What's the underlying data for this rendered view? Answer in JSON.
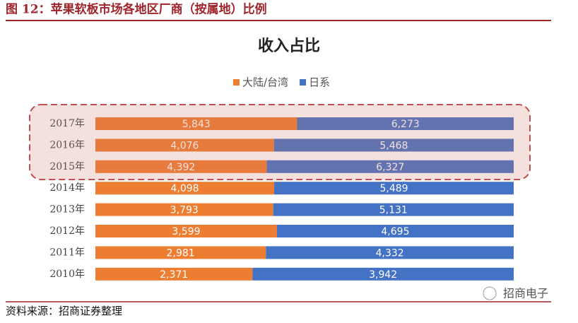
{
  "header": {
    "title": "图 12：苹果软板市场各地区厂商（按属地）比例"
  },
  "chart_data": {
    "type": "stacked-bar-100",
    "title": "收入占比",
    "categories": [
      "2017年",
      "2016年",
      "2015年",
      "2014年",
      "2013年",
      "2012年",
      "2011年",
      "2010年"
    ],
    "series": [
      {
        "name": "大陆/台湾",
        "color": "#ed7d31",
        "values": [
          5843,
          4076,
          4392,
          4098,
          3793,
          3599,
          2981,
          2371
        ],
        "value_labels": [
          "5,843",
          "4,076",
          "4,392",
          "4,098",
          "3,793",
          "3,599",
          "2,981",
          "2,371"
        ]
      },
      {
        "name": "日系",
        "color": "#4472c4",
        "values": [
          6273,
          5468,
          6327,
          5489,
          5131,
          4695,
          4332,
          3942
        ],
        "value_labels": [
          "6,273",
          "5,468",
          "6,327",
          "5,489",
          "5,131",
          "4,695",
          "4,332",
          "3,942"
        ]
      }
    ],
    "legend": "top"
  },
  "footer": {
    "source": "资料来源：招商证券整理",
    "watermark": "招商电子"
  }
}
